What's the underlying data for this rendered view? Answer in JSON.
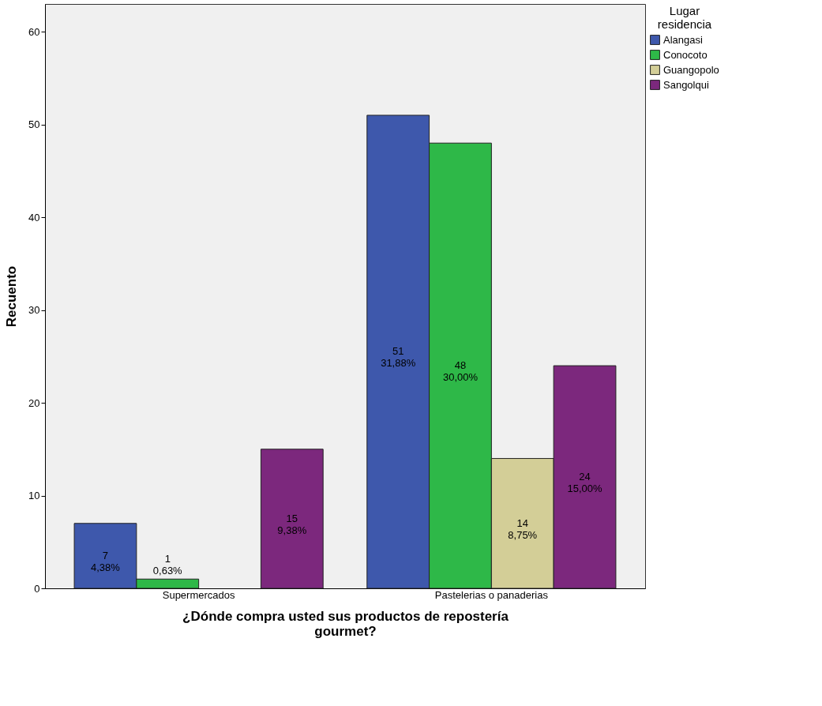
{
  "chart_data": {
    "type": "bar",
    "xlabel": "¿Dónde compra usted sus productos de repostería gourmet?",
    "ylabel": "Recuento",
    "legend_title": "Lugar residencia",
    "categories": [
      "Supermercados",
      "Pastelerias o panaderias"
    ],
    "series": [
      {
        "name": "Alangasi",
        "color": "#3e58ac",
        "values": [
          7,
          51
        ],
        "value_labels": [
          "7\n4,38%",
          "51\n31,88%"
        ]
      },
      {
        "name": "Conocoto",
        "color": "#2eb848",
        "values": [
          1,
          48
        ],
        "value_labels": [
          "1\n0,63%",
          "48\n30,00%"
        ]
      },
      {
        "name": "Guangopolo",
        "color": "#d3ce97",
        "values": [
          null,
          14
        ],
        "value_labels": [
          null,
          "14\n8,75%"
        ]
      },
      {
        "name": "Sangolqui",
        "color": "#7c287d",
        "values": [
          15,
          24
        ],
        "value_labels": [
          "15\n9,38%",
          "24\n15,00%"
        ]
      }
    ],
    "ylim": [
      0,
      63
    ],
    "yticks": [
      0,
      10,
      20,
      30,
      40,
      50,
      60
    ],
    "grid": false,
    "legend": "top right"
  }
}
